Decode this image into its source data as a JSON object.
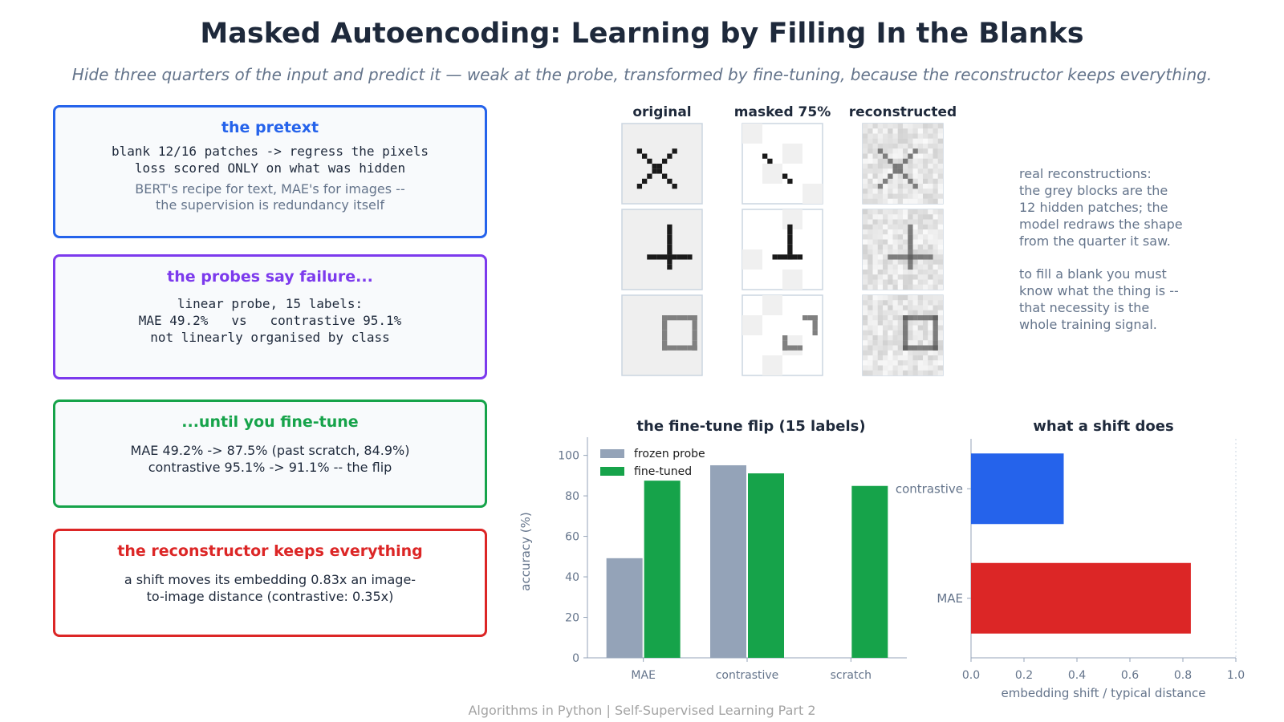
{
  "title": "Masked Autoencoding: Learning by Filling In the Blanks",
  "subtitle": "Hide three quarters of the input and predict it — weak at the probe, transformed by fine-tuning, because the reconstructor keeps everything.",
  "cards": [
    {
      "title": "the pretext",
      "color": "#2563eb",
      "mono_lines": [
        "blank 12/16 patches -> regress the pixels",
        "loss scored ONLY on what was hidden"
      ],
      "note_lines": [
        "BERT's recipe for text, MAE's for images --",
        "the supervision is redundancy itself"
      ]
    },
    {
      "title": "the probes say failure...",
      "color": "#7c3aed",
      "mono_lines": [
        "linear probe, 15 labels:",
        "MAE 49.2%   vs   contrastive 95.1%",
        "not linearly organised by class"
      ]
    },
    {
      "title": "...until you fine-tune",
      "color": "#16a34a",
      "body_lines": [
        "MAE 49.2% -> 87.5% (past scratch, 84.9%)",
        "contrastive 95.1% -> 91.1% -- the flip"
      ]
    },
    {
      "title": "the reconstructor keeps everything",
      "color": "#dc2626",
      "body_lines": [
        "a shift moves its embedding 0.83x an image-",
        "to-image distance (contrastive: 0.35x)"
      ]
    }
  ],
  "recon_grid": {
    "columns": [
      "original",
      "masked 75%",
      "reconstructed"
    ],
    "rows": [
      "x-shape",
      "plus-shape",
      "square-shape"
    ]
  },
  "side_note": {
    "lines": [
      "real reconstructions:",
      "the grey blocks are the",
      "12 hidden patches; the",
      "model redraws the shape",
      "from the quarter it saw.",
      "",
      "to fill a blank you must",
      "know what the thing is --",
      "that necessity is the",
      "whole training signal."
    ]
  },
  "chart_data": [
    {
      "type": "bar",
      "title": "the fine-tune flip (15 labels)",
      "categories": [
        "MAE",
        "contrastive",
        "scratch"
      ],
      "series": [
        {
          "name": "frozen probe",
          "values": [
            49.2,
            95.1,
            null
          ],
          "color": "#94a3b8"
        },
        {
          "name": "fine-tuned",
          "values": [
            87.5,
            91.1,
            84.9
          ],
          "color": "#16a34a"
        }
      ],
      "xlabel": "",
      "ylabel": "accuracy (%)",
      "ylim": [
        0,
        105
      ],
      "yticks": [
        0,
        20,
        40,
        60,
        80,
        100
      ],
      "legend": "top-left",
      "grid": false
    },
    {
      "type": "bar",
      "orientation": "horizontal",
      "title": "what a shift does",
      "categories": [
        "contrastive",
        "MAE"
      ],
      "values": [
        0.35,
        0.83
      ],
      "colors": [
        "#2563eb",
        "#dc2626"
      ],
      "xlabel": "embedding shift / typical distance",
      "xlim": [
        0,
        1.0
      ],
      "xticks": [
        "0.0",
        "0.2",
        "0.4",
        "0.6",
        "0.8",
        "1.0"
      ],
      "reference_line": 1.0,
      "grid": false
    }
  ],
  "footer": "Algorithms in Python  |  Self-Supervised Learning Part 2"
}
